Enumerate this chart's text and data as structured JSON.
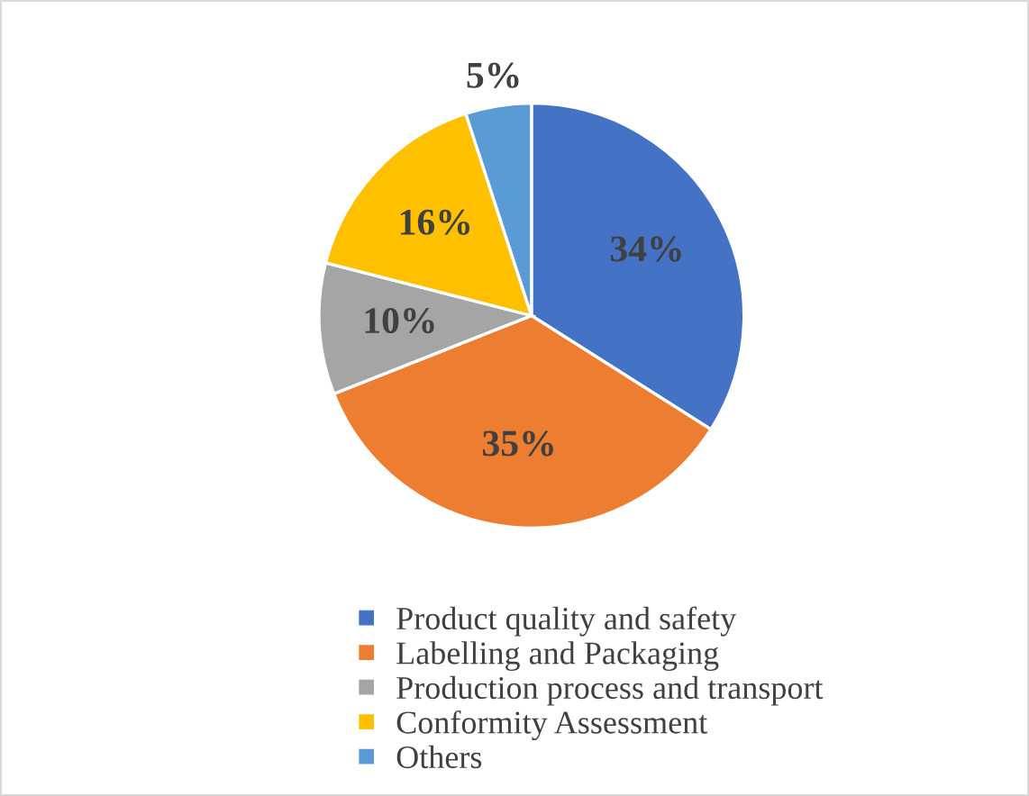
{
  "chart_data": {
    "type": "pie",
    "categories": [
      "Product quality and safety",
      "Labelling and Packaging",
      "Production process and transport",
      "Conformity Assessment",
      "Others"
    ],
    "values": [
      34,
      35,
      10,
      16,
      5
    ],
    "colors": [
      "#4472c4",
      "#ed7d31",
      "#a5a5a5",
      "#ffc000",
      "#5b9bd5"
    ],
    "value_labels": [
      "34%",
      "35%",
      "10%",
      "16%",
      "5%"
    ],
    "legend": "bottom"
  }
}
